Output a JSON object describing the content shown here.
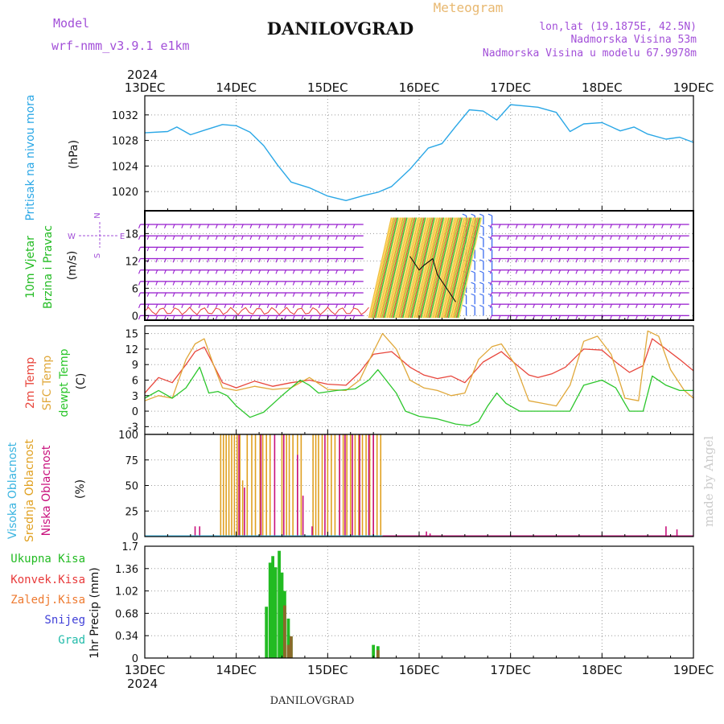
{
  "header": {
    "model_label": "Model",
    "model_name": "wrf-nmm_v3.9.1 e1km",
    "title": "DANILOVGRAD",
    "meteogram_label": "Meteogram",
    "lonlat": "lon,lat (19.1875E, 42.5N)",
    "elevation": "Nadmorska Visina 53m",
    "model_elevation": "Nadmorska Visina u modelu 67.9978m",
    "footer_title": "DANILOVGRAD",
    "watermark": "made by Angel"
  },
  "time_axis": {
    "year": "2024",
    "ticks": [
      "13DEC",
      "14DEC",
      "15DEC",
      "16DEC",
      "17DEC",
      "18DEC",
      "19DEC"
    ]
  },
  "panels": {
    "pressure": {
      "label": "Pritisak na nivou mora",
      "unit": "(hPa)"
    },
    "wind": {
      "label_line1": "10m Vjetar",
      "label_line2": "Brzina i Pravac",
      "unit": "(m/s)",
      "compass": {
        "north": "N",
        "south": "S",
        "east": "E",
        "west": "W"
      }
    },
    "temp": {
      "label_2m": "2m Temp",
      "label_sfc": "SFC Temp",
      "label_dew": "dewpt Temp",
      "unit": "(C)"
    },
    "cloud": {
      "label_high": "Visoka Oblacnost",
      "label_mid": "Srednja Oblacnost",
      "label_low": "Niska Oblacnost",
      "unit": "(%)"
    },
    "precip": {
      "label_total": "Ukupna Kisa",
      "label_conv": "Konvek.Kisa",
      "label_frz": "Zaledj.Kisa",
      "label_snow": "Snijeg",
      "label_grad": "Grad",
      "unit": "1hr Precip (mm)"
    }
  },
  "colors": {
    "pressure": "#2aa7e6",
    "temp2m": "#e8463c",
    "sfc": "#e0a83a",
    "dew": "#2cc62c",
    "high_cloud": "#3ab4e0",
    "mid_cloud": "#e0a020",
    "low_cloud": "#c8107c",
    "precip_total": "#22bb22",
    "precip_conv": "#e83a3a",
    "precip_frz": "#ee7a30",
    "snow": "#4040d8",
    "grad": "#22bbaa",
    "wind_barb": "#9a22d0",
    "header_purple": "#a24fd8",
    "meteogram_orange": "#e8b870"
  },
  "chart_data": [
    {
      "type": "line",
      "title": "",
      "ylabel": "Pritisak na nivou mora (hPa)",
      "ylim": [
        1017,
        1035
      ],
      "yticks": [
        1020,
        1024,
        1028,
        1032
      ],
      "x_unit": "days since 13DEC 00UTC",
      "series": [
        {
          "name": "Pritisak na nivou mora",
          "x": [
            0,
            0.25,
            0.35,
            0.5,
            0.65,
            0.85,
            1.0,
            1.15,
            1.3,
            1.45,
            1.6,
            1.8,
            2.0,
            2.2,
            2.4,
            2.55,
            2.7,
            2.9,
            3.1,
            3.25,
            3.4,
            3.55,
            3.7,
            3.85,
            4.0,
            4.15,
            4.3,
            4.5,
            4.65,
            4.8,
            5.0,
            5.2,
            5.35,
            5.5,
            5.7,
            5.85,
            6.0
          ],
          "y": [
            1029.2,
            1029.4,
            1030.1,
            1028.9,
            1029.6,
            1030.5,
            1030.3,
            1029.3,
            1027.2,
            1024.2,
            1021.5,
            1020.6,
            1019.3,
            1018.6,
            1019.4,
            1019.9,
            1020.8,
            1023.5,
            1026.8,
            1027.5,
            1030.2,
            1032.8,
            1032.6,
            1031.2,
            1033.6,
            1033.4,
            1033.2,
            1032.4,
            1029.4,
            1030.6,
            1030.8,
            1029.5,
            1030.1,
            1029.0,
            1028.2,
            1028.5,
            1027.7
          ]
        }
      ]
    },
    {
      "type": "scatter",
      "title": "",
      "ylabel": "10m Vjetar Brzina i Pravac (m/s)",
      "ylim": [
        -1,
        23
      ],
      "yticks": [
        0,
        6,
        12,
        18
      ],
      "note_type": "wind barbs"
    },
    {
      "type": "line",
      "title": "",
      "ylabel": "Temp (C)",
      "ylim": [
        -4.5,
        16.5
      ],
      "yticks": [
        -3,
        0,
        3,
        6,
        9,
        12,
        15
      ],
      "series": [
        {
          "name": "2m Temp",
          "x": [
            0,
            0.15,
            0.3,
            0.45,
            0.55,
            0.65,
            0.75,
            0.85,
            1.0,
            1.2,
            1.4,
            1.6,
            1.8,
            2.0,
            2.2,
            2.35,
            2.5,
            2.7,
            2.9,
            3.05,
            3.2,
            3.35,
            3.5,
            3.7,
            3.9,
            4.05,
            4.2,
            4.3,
            4.45,
            4.6,
            4.8,
            5.0,
            5.15,
            5.3,
            5.45,
            5.55,
            5.7,
            5.85,
            6.0
          ],
          "y": [
            3.5,
            6.5,
            5.5,
            9.0,
            11.5,
            12.4,
            9.0,
            5.5,
            4.5,
            5.8,
            4.8,
            5.5,
            6.0,
            5.2,
            5.0,
            7.5,
            11.0,
            11.5,
            8.5,
            7.0,
            6.3,
            6.8,
            5.5,
            9.5,
            11.5,
            9.2,
            7.0,
            6.5,
            7.2,
            8.5,
            12.0,
            11.8,
            9.5,
            7.5,
            8.8,
            14.0,
            12.0,
            10.0,
            7.8
          ]
        },
        {
          "name": "SFC Temp",
          "x": [
            0,
            0.15,
            0.3,
            0.45,
            0.55,
            0.65,
            0.75,
            0.85,
            1.0,
            1.2,
            1.4,
            1.6,
            1.8,
            2.0,
            2.2,
            2.35,
            2.5,
            2.6,
            2.75,
            2.9,
            3.05,
            3.2,
            3.35,
            3.5,
            3.65,
            3.8,
            3.9,
            4.05,
            4.2,
            4.35,
            4.5,
            4.65,
            4.8,
            4.95,
            5.1,
            5.25,
            5.4,
            5.5,
            5.62,
            5.75,
            5.9,
            6.0
          ],
          "y": [
            2.0,
            3.0,
            2.5,
            10.0,
            13.0,
            14.0,
            9.0,
            4.5,
            4.0,
            4.8,
            4.2,
            4.5,
            6.5,
            4.2,
            4.0,
            6.0,
            11.5,
            15.0,
            12.0,
            6.0,
            4.5,
            4.0,
            3.0,
            3.5,
            10.0,
            12.5,
            13.0,
            9.0,
            2.0,
            1.5,
            1.0,
            5.0,
            13.5,
            14.5,
            11.0,
            2.5,
            2.0,
            15.5,
            14.5,
            8.0,
            4.0,
            2.5
          ]
        },
        {
          "name": "dewpt Temp",
          "x": [
            0,
            0.15,
            0.3,
            0.45,
            0.6,
            0.7,
            0.8,
            0.9,
            1.0,
            1.15,
            1.3,
            1.5,
            1.7,
            1.8,
            1.9,
            2.1,
            2.3,
            2.45,
            2.55,
            2.75,
            2.85,
            3.0,
            3.2,
            3.4,
            3.55,
            3.65,
            3.75,
            3.85,
            3.95,
            4.1,
            4.25,
            4.45,
            4.65,
            4.8,
            5.0,
            5.15,
            5.3,
            5.45,
            5.55,
            5.7,
            5.85,
            6.0
          ],
          "y": [
            2.5,
            4.0,
            2.5,
            4.5,
            8.5,
            3.5,
            3.8,
            3.0,
            1.0,
            -1.2,
            -0.2,
            3.0,
            6.0,
            5.0,
            3.5,
            4.0,
            4.3,
            6.0,
            8.0,
            3.5,
            0.0,
            -1.0,
            -1.5,
            -2.5,
            -2.8,
            -2.0,
            1.0,
            3.5,
            1.5,
            0.0,
            0.0,
            0.0,
            0.0,
            5.0,
            6.0,
            4.5,
            0.0,
            0.0,
            6.8,
            5.0,
            4.0,
            4.0
          ]
        }
      ]
    },
    {
      "type": "bar",
      "title": "",
      "ylabel": "Oblacnost (%)",
      "ylim": [
        0,
        100
      ],
      "yticks": [
        0,
        25,
        50,
        75,
        100
      ],
      "series": [
        {
          "name": "Srednja Oblacnost",
          "x": [
            0.83,
            0.86,
            0.89,
            0.92,
            0.95,
            0.98,
            1.01,
            1.04,
            1.07,
            1.12,
            1.17,
            1.21,
            1.26,
            1.29,
            1.33,
            1.37,
            1.5,
            1.55,
            1.58,
            1.62,
            1.67,
            1.71,
            1.84,
            1.87,
            1.9,
            1.94,
            2.0,
            2.04,
            2.08,
            2.13,
            2.17,
            2.21,
            2.25,
            2.3,
            2.34,
            2.38,
            2.42,
            2.46,
            2.5,
            2.54,
            2.58
          ],
          "y": [
            100,
            100,
            100,
            100,
            100,
            100,
            100,
            100,
            55,
            100,
            100,
            100,
            100,
            100,
            100,
            100,
            100,
            100,
            100,
            100,
            100,
            100,
            100,
            100,
            100,
            100,
            100,
            100,
            100,
            100,
            100,
            100,
            100,
            100,
            100,
            100,
            100,
            100,
            100,
            100,
            100
          ]
        },
        {
          "name": "Niska Oblacnost",
          "x": [
            0.55,
            0.6,
            1.03,
            1.09,
            1.27,
            1.42,
            1.52,
            1.67,
            1.73,
            1.83,
            1.97,
            2.13,
            2.19,
            2.27,
            2.35,
            2.45,
            2.5,
            3.08,
            3.12,
            5.7,
            5.82
          ],
          "y": [
            10,
            10,
            100,
            48,
            100,
            100,
            100,
            80,
            40,
            10,
            100,
            100,
            100,
            100,
            100,
            100,
            100,
            5,
            3,
            10,
            7
          ]
        },
        {
          "name": "Visoka Oblacnost",
          "x": [],
          "y": []
        }
      ]
    },
    {
      "type": "bar",
      "title": "",
      "ylabel": "1hr Precip (mm)",
      "ylim": [
        0,
        1.7
      ],
      "yticks": [
        0,
        0.34,
        0.68,
        1.02,
        1.36,
        1.7
      ],
      "series": [
        {
          "name": "Ukupna Kisa",
          "x": [
            1.33,
            1.37,
            1.4,
            1.43,
            1.47,
            1.5,
            1.53,
            1.57,
            1.6,
            2.5,
            2.55
          ],
          "y": [
            0.78,
            1.45,
            1.55,
            1.38,
            1.63,
            1.3,
            1.02,
            0.6,
            0.33,
            0.2,
            0.18
          ]
        },
        {
          "name": "Konvek.Kisa",
          "x": [
            1.53,
            1.57,
            1.6,
            2.55
          ],
          "y": [
            0.8,
            0.2,
            0.33,
            0.12
          ]
        }
      ]
    }
  ]
}
